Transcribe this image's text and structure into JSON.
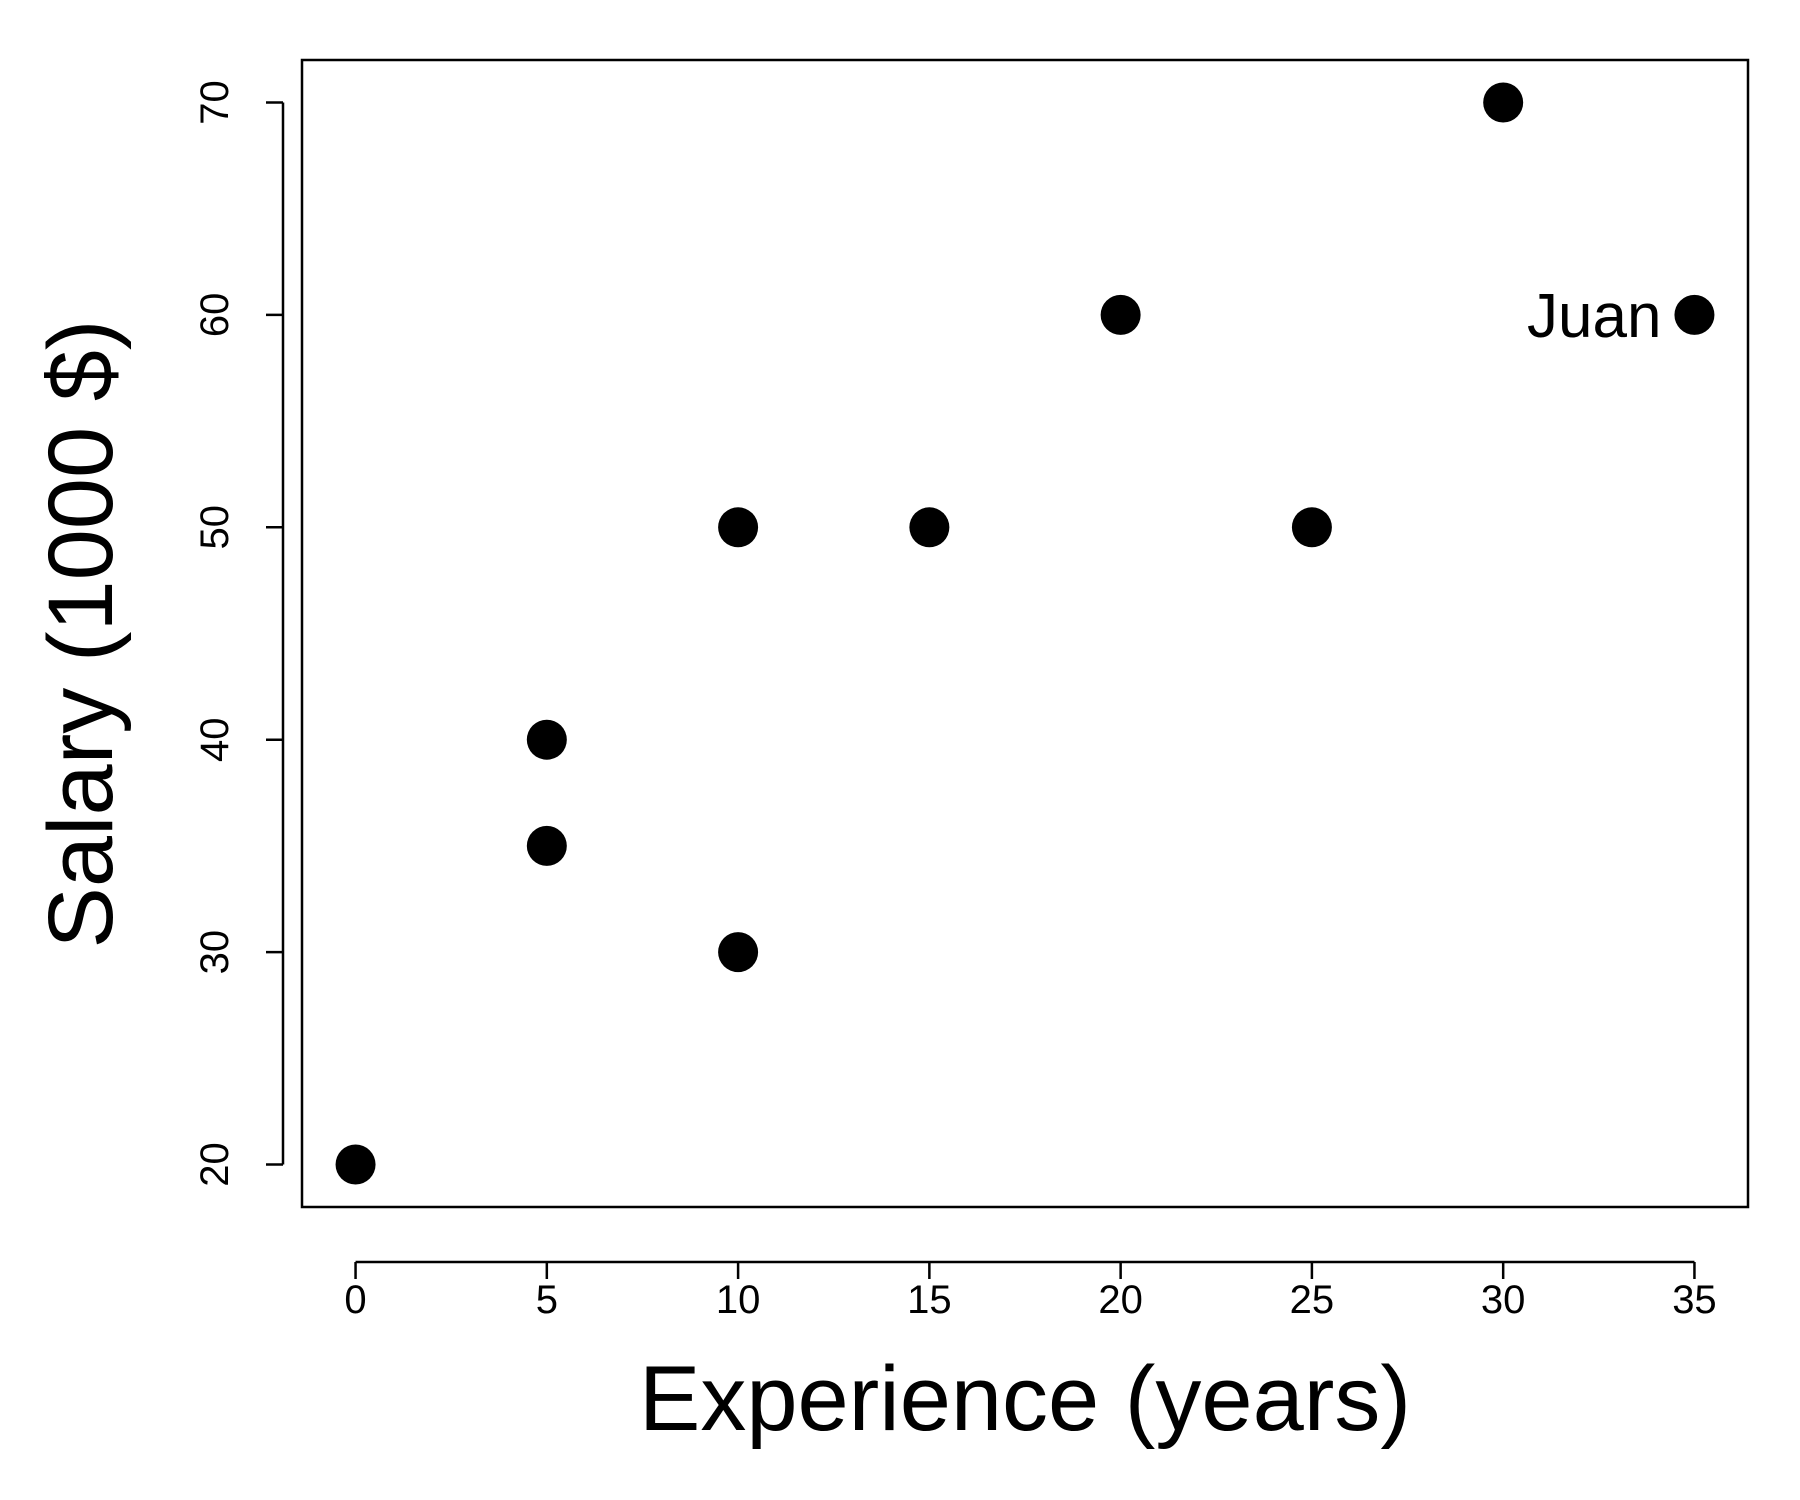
{
  "chart_data": {
    "type": "scatter",
    "title": "",
    "xlabel": "Experience (years)",
    "ylabel": "Salary (1000 $)",
    "xlim": [
      -1.4,
      36.4
    ],
    "ylim": [
      18,
      72
    ],
    "x_ticks": [
      0,
      5,
      10,
      15,
      20,
      25,
      30,
      35
    ],
    "y_ticks": [
      20,
      30,
      40,
      50,
      60,
      70
    ],
    "x_tick_labels": [
      "0",
      "5",
      "10",
      "15",
      "20",
      "25",
      "30",
      "35"
    ],
    "y_tick_labels": [
      "20",
      "30",
      "40",
      "50",
      "60",
      "70"
    ],
    "grid": false,
    "legend": "none",
    "marker_color": "#000000",
    "points": [
      {
        "x": 0,
        "y": 20
      },
      {
        "x": 5,
        "y": 40
      },
      {
        "x": 5,
        "y": 35
      },
      {
        "x": 10,
        "y": 50
      },
      {
        "x": 10,
        "y": 30
      },
      {
        "x": 15,
        "y": 50
      },
      {
        "x": 20,
        "y": 60
      },
      {
        "x": 25,
        "y": 50
      },
      {
        "x": 30,
        "y": 70
      },
      {
        "x": 35,
        "y": 60
      }
    ],
    "annotations": [
      {
        "text": "Juan",
        "x": 35,
        "y": 60,
        "position": "left"
      }
    ]
  }
}
